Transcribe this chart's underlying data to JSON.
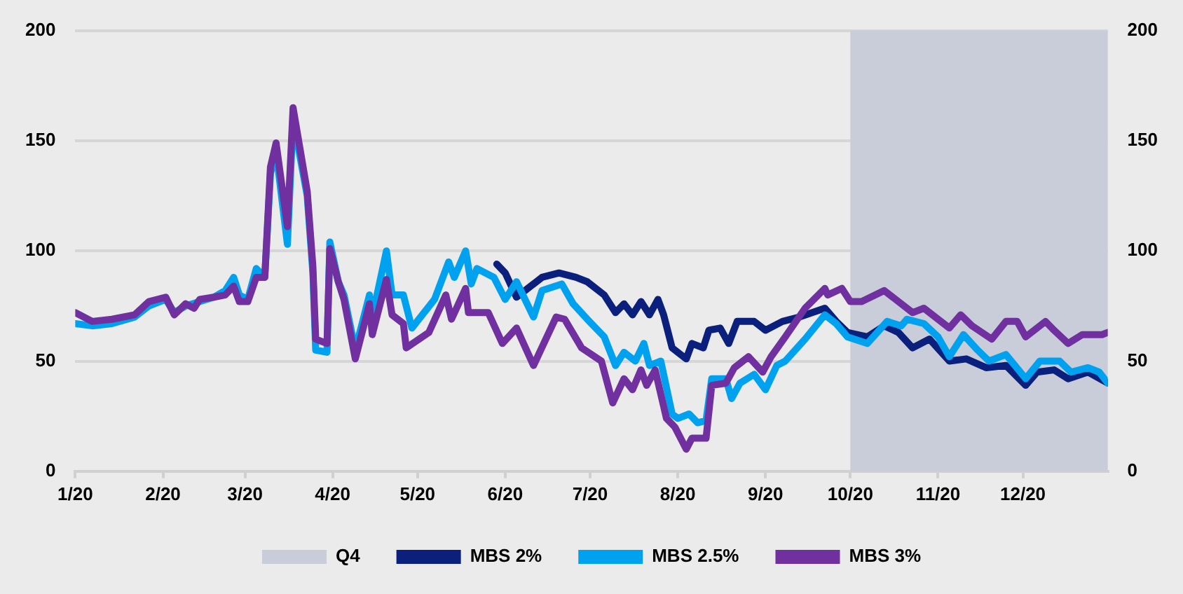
{
  "chart_data": {
    "type": "line",
    "xlim": [
      "2020-01-01",
      "2020-12-31"
    ],
    "xticks": [
      {
        "value": "2020-01-01",
        "label": "1/20"
      },
      {
        "value": "2020-02-01",
        "label": "2/20"
      },
      {
        "value": "2020-03-01",
        "label": "3/20"
      },
      {
        "value": "2020-04-01",
        "label": "4/20"
      },
      {
        "value": "2020-05-01",
        "label": "5/20"
      },
      {
        "value": "2020-06-01",
        "label": "6/20"
      },
      {
        "value": "2020-07-01",
        "label": "7/20"
      },
      {
        "value": "2020-08-01",
        "label": "8/20"
      },
      {
        "value": "2020-09-01",
        "label": "9/20"
      },
      {
        "value": "2020-10-01",
        "label": "10/20"
      },
      {
        "value": "2020-11-01",
        "label": "11/20"
      },
      {
        "value": "2020-12-01",
        "label": "12/20"
      }
    ],
    "ylim": [
      0,
      200
    ],
    "yticks": [
      0,
      50,
      100,
      150,
      200
    ],
    "y2lim": [
      0,
      200
    ],
    "y2ticks": [
      0,
      50,
      100,
      150,
      200
    ],
    "grid": "y",
    "legend": "bottom",
    "marker": "none",
    "line_style": "solid",
    "bands": [
      {
        "axis": "x",
        "from": "2020-10-01",
        "to": "2020-12-31",
        "label": "Q4",
        "color": "#c9cdd9"
      }
    ],
    "series": [
      {
        "name": "MBS 2%",
        "color": "#0b1f7c",
        "x": [
          "2020-05-29",
          "2020-06-01",
          "2020-06-05",
          "2020-06-10",
          "2020-06-14",
          "2020-06-20",
          "2020-06-26",
          "2020-06-30",
          "2020-07-06",
          "2020-07-10",
          "2020-07-13",
          "2020-07-16",
          "2020-07-19",
          "2020-07-22",
          "2020-07-25",
          "2020-07-27",
          "2020-07-30",
          "2020-08-04",
          "2020-08-06",
          "2020-08-10",
          "2020-08-12",
          "2020-08-16",
          "2020-08-19",
          "2020-08-22",
          "2020-08-28",
          "2020-09-01",
          "2020-09-07",
          "2020-09-13",
          "2020-09-22",
          "2020-09-26",
          "2020-09-30",
          "2020-10-07",
          "2020-10-13",
          "2020-10-18",
          "2020-10-23",
          "2020-10-29",
          "2020-11-05",
          "2020-11-11",
          "2020-11-18",
          "2020-11-25",
          "2020-12-02",
          "2020-12-06",
          "2020-12-12",
          "2020-12-17",
          "2020-12-24",
          "2020-12-31"
        ],
        "values": [
          94,
          90,
          79,
          84,
          88,
          90,
          88,
          86,
          80,
          72,
          76,
          71,
          77,
          71,
          78,
          71,
          56,
          51,
          58,
          56,
          64,
          65,
          58,
          68,
          68,
          64,
          68,
          70,
          74,
          68,
          63,
          61,
          66,
          63,
          56,
          60,
          50,
          51,
          47,
          48,
          39,
          45,
          46,
          42,
          45,
          40
        ]
      },
      {
        "name": "MBS 2.5%",
        "color": "#00a2ef",
        "x": [
          "2020-01-01",
          "2020-01-07",
          "2020-01-14",
          "2020-01-22",
          "2020-01-27",
          "2020-02-02",
          "2020-02-05",
          "2020-02-09",
          "2020-02-14",
          "2020-02-19",
          "2020-02-23",
          "2020-02-26",
          "2020-02-28",
          "2020-03-02",
          "2020-03-05",
          "2020-03-08",
          "2020-03-10",
          "2020-03-12",
          "2020-03-16",
          "2020-03-18",
          "2020-03-23",
          "2020-03-25",
          "2020-03-26",
          "2020-03-30",
          "2020-03-31",
          "2020-04-03",
          "2020-04-05",
          "2020-04-09",
          "2020-04-14",
          "2020-04-15",
          "2020-04-20",
          "2020-04-22",
          "2020-04-26",
          "2020-04-29",
          "2020-05-07",
          "2020-05-12",
          "2020-05-14",
          "2020-05-18",
          "2020-05-20",
          "2020-05-22",
          "2020-05-28",
          "2020-06-01",
          "2020-06-05",
          "2020-06-11",
          "2020-06-14",
          "2020-06-21",
          "2020-06-25",
          "2020-06-30",
          "2020-07-06",
          "2020-07-10",
          "2020-07-13",
          "2020-07-17",
          "2020-07-20",
          "2020-07-22",
          "2020-07-26",
          "2020-07-30",
          "2020-08-01",
          "2020-08-05",
          "2020-08-08",
          "2020-08-11",
          "2020-08-13",
          "2020-08-18",
          "2020-08-20",
          "2020-08-23",
          "2020-08-28",
          "2020-09-01",
          "2020-09-05",
          "2020-09-08",
          "2020-09-15",
          "2020-09-22",
          "2020-09-26",
          "2020-09-30",
          "2020-10-07",
          "2020-10-14",
          "2020-10-19",
          "2020-10-21",
          "2020-10-27",
          "2020-11-01",
          "2020-11-05",
          "2020-11-10",
          "2020-11-15",
          "2020-11-19",
          "2020-11-25",
          "2020-12-02",
          "2020-12-07",
          "2020-12-14",
          "2020-12-18",
          "2020-12-24",
          "2020-12-28",
          "2020-12-31"
        ],
        "values": [
          67,
          66,
          67,
          70,
          75,
          78,
          72,
          75,
          77,
          79,
          82,
          88,
          80,
          78,
          92,
          88,
          135,
          145,
          103,
          160,
          125,
          90,
          55,
          54,
          104,
          86,
          80,
          55,
          80,
          70,
          100,
          80,
          80,
          65,
          78,
          95,
          88,
          100,
          85,
          92,
          88,
          78,
          86,
          70,
          82,
          85,
          76,
          69,
          61,
          48,
          54,
          50,
          58,
          48,
          50,
          26,
          24,
          26,
          22,
          23,
          42,
          42,
          33,
          40,
          44,
          37,
          48,
          50,
          60,
          71,
          67,
          61,
          58,
          68,
          66,
          69,
          67,
          61,
          52,
          62,
          55,
          50,
          53,
          42,
          50,
          50,
          45,
          47,
          45,
          40
        ]
      },
      {
        "name": "MBS 3%",
        "color": "#7030a0",
        "x": [
          "2020-01-01",
          "2020-01-07",
          "2020-01-14",
          "2020-01-22",
          "2020-01-27",
          "2020-02-02",
          "2020-02-05",
          "2020-02-09",
          "2020-02-12",
          "2020-02-14",
          "2020-02-19",
          "2020-02-23",
          "2020-02-26",
          "2020-02-28",
          "2020-03-02",
          "2020-03-05",
          "2020-03-08",
          "2020-03-10",
          "2020-03-12",
          "2020-03-16",
          "2020-03-18",
          "2020-03-23",
          "2020-03-25",
          "2020-03-26",
          "2020-03-30",
          "2020-03-31",
          "2020-04-03",
          "2020-04-05",
          "2020-04-09",
          "2020-04-14",
          "2020-04-15",
          "2020-04-20",
          "2020-04-22",
          "2020-04-26",
          "2020-04-27",
          "2020-05-05",
          "2020-05-11",
          "2020-05-13",
          "2020-05-18",
          "2020-05-19",
          "2020-05-26",
          "2020-05-31",
          "2020-06-05",
          "2020-06-11",
          "2020-06-19",
          "2020-06-22",
          "2020-06-28",
          "2020-07-05",
          "2020-07-09",
          "2020-07-13",
          "2020-07-16",
          "2020-07-19",
          "2020-07-21",
          "2020-07-24",
          "2020-07-28",
          "2020-07-31",
          "2020-08-04",
          "2020-08-06",
          "2020-08-11",
          "2020-08-13",
          "2020-08-18",
          "2020-08-21",
          "2020-08-26",
          "2020-08-31",
          "2020-09-03",
          "2020-09-08",
          "2020-09-15",
          "2020-09-22",
          "2020-09-23",
          "2020-09-28",
          "2020-10-01",
          "2020-10-05",
          "2020-10-13",
          "2020-10-17",
          "2020-10-23",
          "2020-10-27",
          "2020-11-05",
          "2020-11-09",
          "2020-11-13",
          "2020-11-20",
          "2020-11-25",
          "2020-11-29",
          "2020-12-02",
          "2020-12-09",
          "2020-12-12",
          "2020-12-17",
          "2020-12-22",
          "2020-12-29",
          "2020-12-31"
        ],
        "values": [
          72,
          68,
          69,
          71,
          77,
          79,
          71,
          76,
          74,
          78,
          79,
          80,
          84,
          77,
          77,
          88,
          88,
          138,
          149,
          111,
          165,
          127,
          93,
          60,
          58,
          101,
          86,
          78,
          51,
          76,
          62,
          87,
          71,
          67,
          56,
          63,
          80,
          69,
          83,
          72,
          72,
          58,
          65,
          48,
          70,
          69,
          56,
          50,
          31,
          42,
          37,
          46,
          39,
          46,
          24,
          20,
          10,
          15,
          15,
          39,
          40,
          47,
          52,
          45,
          52,
          61,
          74,
          83,
          80,
          83,
          77,
          77,
          82,
          78,
          72,
          74,
          65,
          71,
          66,
          60,
          68,
          68,
          61,
          68,
          64,
          58,
          62,
          62,
          63
        ]
      }
    ]
  }
}
